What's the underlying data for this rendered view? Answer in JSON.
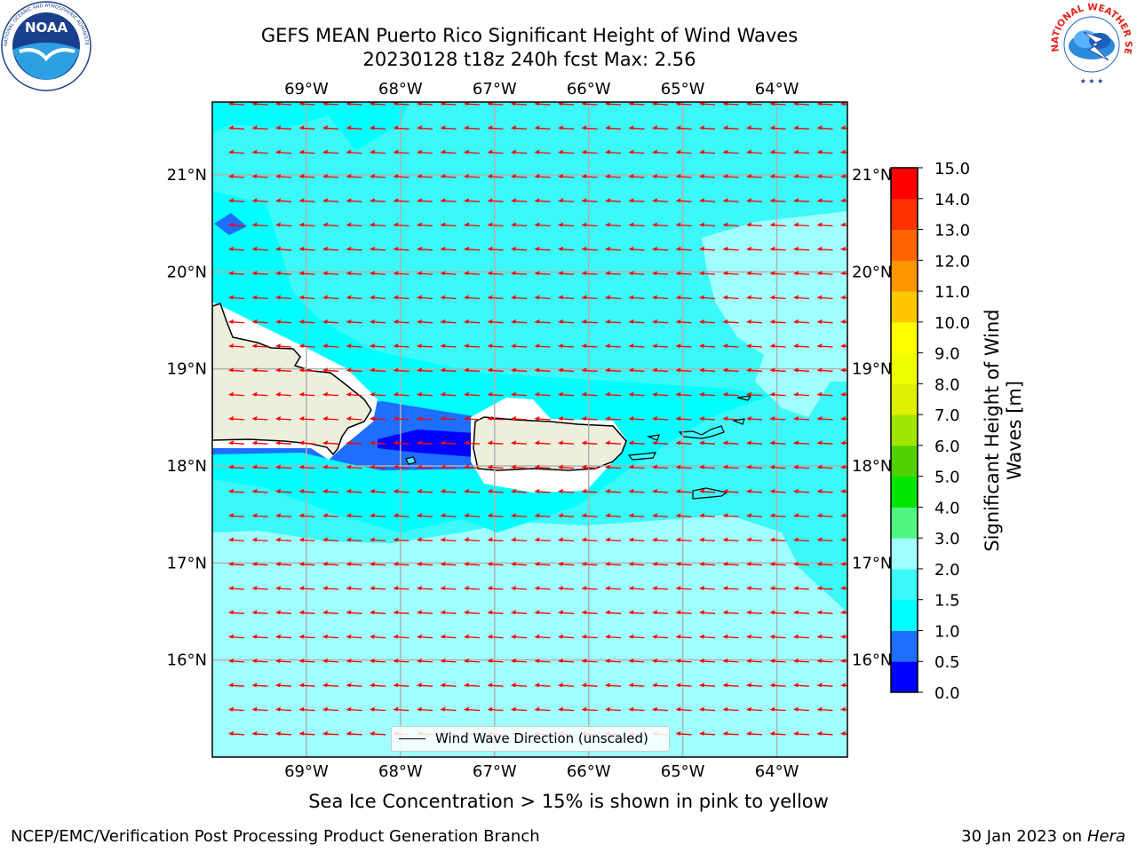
{
  "title": {
    "line1": "GEFS MEAN Puerto Rico Significant Height of Wind Waves",
    "line2": "20230128 t18z 240h fcst   Max: 2.56"
  },
  "logos": {
    "left": {
      "icon": "noaa-logo-icon",
      "text": "NATIONAL OCEANIC AND ATMOSPHERIC ADMINISTRATION · U.S. DEPARTMENT OF COMMERCE",
      "initials": "NOAA"
    },
    "right": {
      "icon": "nws-logo-icon",
      "text": "NATIONAL WEATHER SERVICE"
    }
  },
  "map": {
    "lon_labels": [
      "69°W",
      "68°W",
      "67°W",
      "66°W",
      "65°W",
      "64°W"
    ],
    "lat_labels": [
      "21°N",
      "20°N",
      "19°N",
      "18°N",
      "17°N",
      "16°N"
    ],
    "lon_values": [
      -69,
      -68,
      -67,
      -66,
      -65,
      -64
    ],
    "lat_values": [
      21,
      20,
      19,
      18,
      17,
      16
    ],
    "lon_range": [
      -70.0,
      -63.25
    ],
    "lat_range": [
      15.0,
      21.75
    ],
    "legend_label": "Wind Wave Direction (unscaled)",
    "arrow_color": "#ff0000",
    "land_color": "#eeeedc",
    "gridlines": true
  },
  "colorbar": {
    "title_line1": "Significant Height of Wind",
    "title_line2": "Waves [m]",
    "tick_labels": [
      "0.0",
      "0.5",
      "1.0",
      "1.5",
      "2.0",
      "3.0",
      "4.0",
      "5.0",
      "6.0",
      "7.0",
      "8.0",
      "9.0",
      "10.0",
      "11.0",
      "12.0",
      "13.0",
      "14.0",
      "15.0"
    ],
    "colors": [
      "#0000ff",
      "#1e6eff",
      "#00ffff",
      "#3cf8f8",
      "#a0ffff",
      "#50f582",
      "#00e600",
      "#50d200",
      "#a0e600",
      "#dcf000",
      "#f0ff00",
      "#ffff00",
      "#ffc800",
      "#ff9600",
      "#ff6400",
      "#ff3200",
      "#ff0000"
    ]
  },
  "footer": {
    "caption": "Sea Ice Concentration > 15% is shown in pink to yellow",
    "left": "NCEP/EMC/Verification Post Processing Product Generation Branch",
    "right_prefix": "30 Jan 2023 on ",
    "right_machine": "Hera"
  }
}
